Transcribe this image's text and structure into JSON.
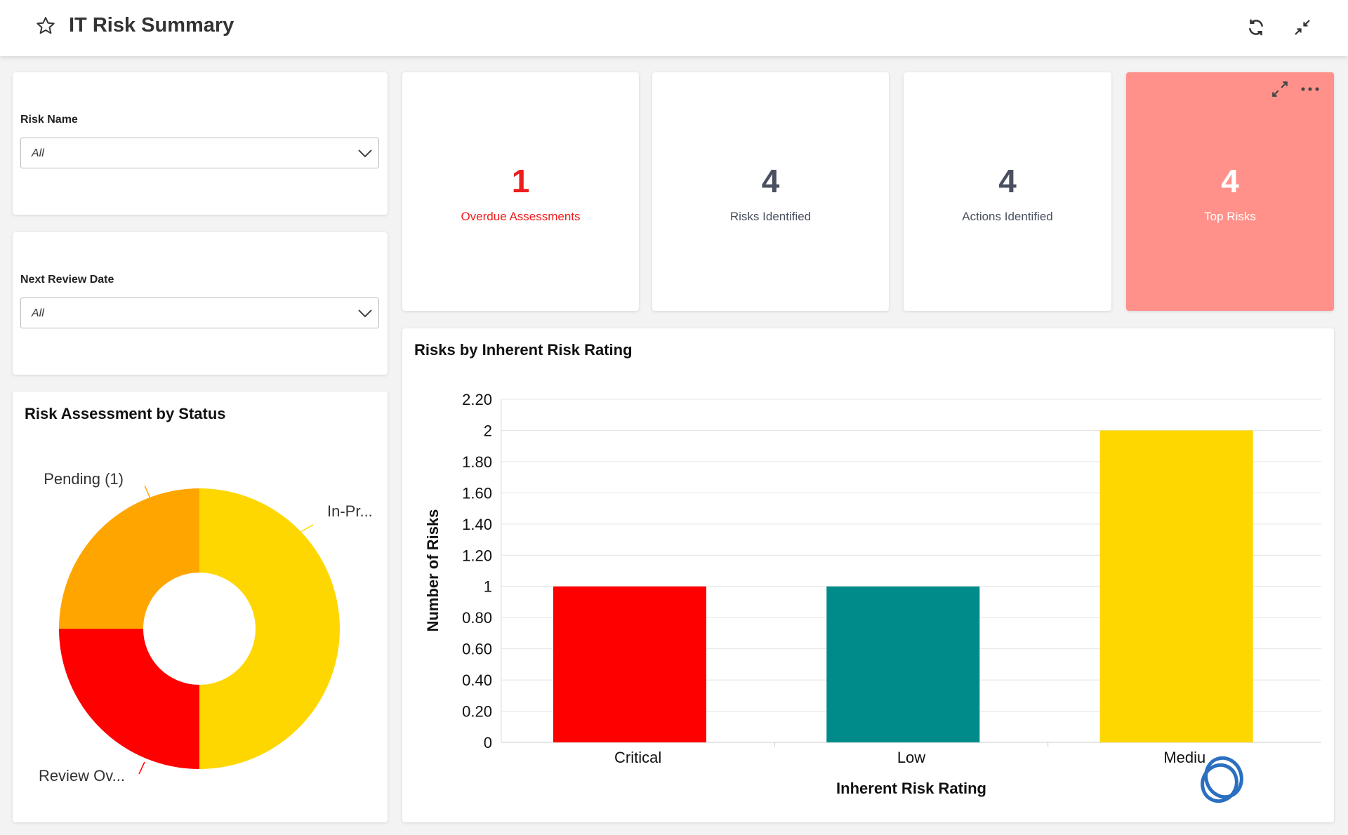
{
  "header": {
    "title": "IT Risk Summary",
    "star_icon": "star-icon",
    "refresh_icon": "refresh-icon",
    "collapse_icon": "collapse-icon"
  },
  "filters": [
    {
      "label": "Risk Name",
      "value": "All"
    },
    {
      "label": "Next Review Date",
      "value": "All"
    }
  ],
  "kpis": [
    {
      "value": "1",
      "label": "Overdue Assessments",
      "color": "#ee1c1c"
    },
    {
      "value": "4",
      "label": "Risks Identified",
      "color": "#4a5060"
    },
    {
      "value": "4",
      "label": "Actions Identified",
      "color": "#4a5060"
    },
    {
      "value": "4",
      "label": "Top Risks",
      "color": "#ffffff",
      "background": "#ff918a"
    }
  ],
  "donut": {
    "title": "Risk Assessment by Status",
    "slices": [
      {
        "label": "In-Pr...",
        "value": 2,
        "color": "#ffd700"
      },
      {
        "label": "Review Ov...",
        "value": 1,
        "color": "#ff0000"
      },
      {
        "label": "Pending (1)",
        "value": 1,
        "color": "#ffa500"
      }
    ]
  },
  "chart_data": {
    "type": "bar",
    "title": "Risks by Inherent Risk Rating",
    "categories": [
      "Critical",
      "Low",
      "Mediu"
    ],
    "values": [
      1,
      1,
      2
    ],
    "colors": [
      "#ff0000",
      "#008b8b",
      "#ffd700"
    ],
    "xlabel": "Inherent Risk Rating",
    "ylabel": "Number of Risks",
    "ylim": [
      0,
      2.2
    ],
    "yticks": [
      "0",
      "0.20",
      "0.40",
      "0.60",
      "0.80",
      "1",
      "1.20",
      "1.40",
      "1.60",
      "1.80",
      "2",
      "2.20"
    ],
    "grid": true
  }
}
